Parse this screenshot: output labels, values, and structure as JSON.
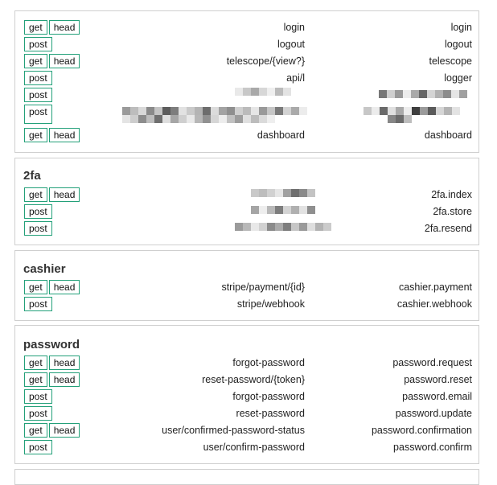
{
  "badges": {
    "get": "get",
    "head": "head",
    "post": "post"
  },
  "groups": [
    {
      "title": "",
      "routes": [
        {
          "methods": [
            "get",
            "head"
          ],
          "uri": "login",
          "name": "login"
        },
        {
          "methods": [
            "post"
          ],
          "uri": "logout",
          "name": "logout"
        },
        {
          "methods": [
            "get",
            "head"
          ],
          "uri": "telescope/{view?}",
          "name": "telescope"
        },
        {
          "methods": [
            "post"
          ],
          "uri": "api/l",
          "name": "logger"
        },
        {
          "methods": [
            "post"
          ],
          "uri": "",
          "name": ""
        },
        {
          "methods": [
            "post"
          ],
          "uri": "",
          "name": ""
        },
        {
          "methods": [
            "get",
            "head"
          ],
          "uri": "dashboard",
          "name": "dashboard"
        }
      ]
    },
    {
      "title": "2fa",
      "routes": [
        {
          "methods": [
            "get",
            "head"
          ],
          "uri": "",
          "name": "2fa.index"
        },
        {
          "methods": [
            "post"
          ],
          "uri": "",
          "name": "2fa.store"
        },
        {
          "methods": [
            "post"
          ],
          "uri": "",
          "name": "2fa.resend"
        }
      ]
    },
    {
      "title": "cashier",
      "routes": [
        {
          "methods": [
            "get",
            "head"
          ],
          "uri": "stripe/payment/{id}",
          "name": "cashier.payment"
        },
        {
          "methods": [
            "post"
          ],
          "uri": "stripe/webhook",
          "name": "cashier.webhook"
        }
      ]
    },
    {
      "title": "password",
      "routes": [
        {
          "methods": [
            "get",
            "head"
          ],
          "uri": "forgot-password",
          "name": "password.request"
        },
        {
          "methods": [
            "get",
            "head"
          ],
          "uri": "reset-password/{token}",
          "name": "password.reset"
        },
        {
          "methods": [
            "post"
          ],
          "uri": "forgot-password",
          "name": "password.email"
        },
        {
          "methods": [
            "post"
          ],
          "uri": "reset-password",
          "name": "password.update"
        },
        {
          "methods": [
            "get",
            "head"
          ],
          "uri": "user/confirmed-password-status",
          "name": "password.confirmation"
        },
        {
          "methods": [
            "post"
          ],
          "uri": "user/confirm-password",
          "name": "password.confirm"
        }
      ]
    }
  ],
  "colors": {
    "badge_border": "#23a079",
    "group_border": "#cfcfcf"
  }
}
